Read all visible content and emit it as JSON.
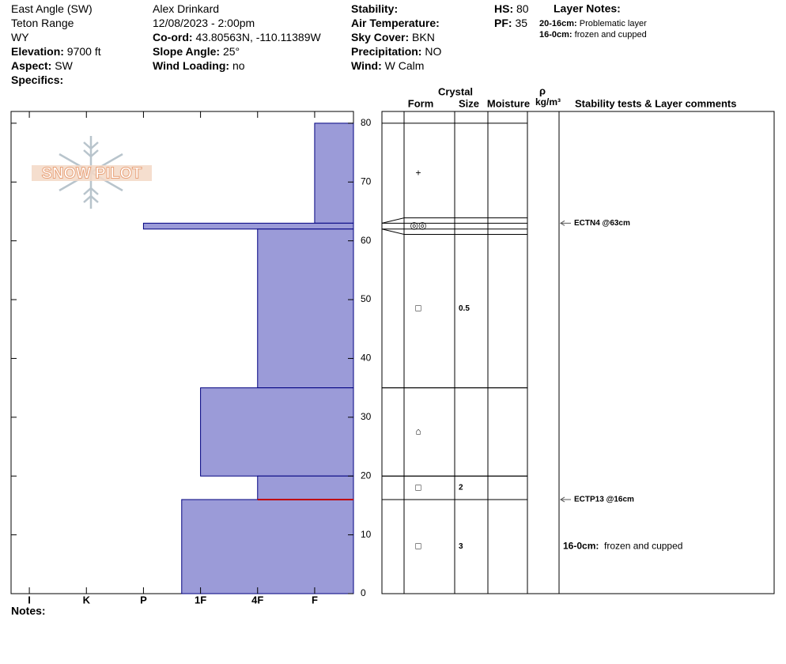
{
  "header": {
    "columns": [
      [
        {
          "text": "East Angle (SW)"
        },
        {
          "text": "Teton Range"
        },
        {
          "text": "WY"
        },
        {
          "label": "Elevation:",
          "value": "9700 ft"
        },
        {
          "label": "Aspect:",
          "value": "SW"
        },
        {
          "label": "Specifics:"
        }
      ],
      [
        {
          "text": "Alex Drinkard"
        },
        {
          "text": "12/08/2023 - 2:00pm"
        },
        {
          "label": "Co-ord:",
          "value": "43.80563N, -110.11389W"
        },
        {
          "label": "Slope Angle:",
          "value": "25°"
        },
        {
          "label": "Wind Loading:",
          "value": "no"
        }
      ],
      [
        {
          "label": "Stability:"
        },
        {
          "label": "Air Temperature:"
        },
        {
          "label": "Sky Cover:",
          "value": "BKN"
        },
        {
          "label": "Precipitation:",
          "value": "NO"
        },
        {
          "label": "Wind:",
          "value": "W Calm"
        }
      ],
      [
        {
          "label": "HS:",
          "value": 80
        },
        {
          "label": "PF:",
          "value": 35
        }
      ]
    ],
    "layer_notes": {
      "title": "Layer Notes:",
      "items": [
        {
          "range": "20-16cm:",
          "text": "Problematic layer"
        },
        {
          "range": "16-0cm:",
          "text": "frozen and cupped"
        }
      ]
    }
  },
  "logo": "SNOW PILOT",
  "notes_label": "Notes:",
  "chart_data": {
    "type": "snow-profile",
    "ylim": [
      0,
      82
    ],
    "yticks": [
      0,
      10,
      20,
      30,
      40,
      50,
      60,
      70,
      80
    ],
    "xlim": [
      0.32,
      6.32
    ],
    "xticks": [
      {
        "value": 6,
        "label": "I"
      },
      {
        "value": 5,
        "label": "K"
      },
      {
        "value": 4,
        "label": "P"
      },
      {
        "value": 3,
        "label": "1F"
      },
      {
        "value": 2,
        "label": "4F"
      },
      {
        "value": 1,
        "label": "F"
      }
    ],
    "color": "#9b9bd8",
    "columns": {
      "crystal": "Crystal",
      "form": "Form",
      "size": "Size",
      "moisture": "Moisture",
      "density": "ρ",
      "density_unit": "kg/m³",
      "comments": "Stability tests & Layer comments"
    },
    "layers": [
      {
        "top": 80,
        "bottom": 63,
        "hardness": 1,
        "form": "+"
      },
      {
        "top": 63,
        "bottom": 62,
        "hardness": 4,
        "form": "◎◎"
      },
      {
        "top": 62,
        "bottom": 35,
        "hardness": 2,
        "form": "□",
        "size": 0.5
      },
      {
        "top": 35,
        "bottom": 20,
        "hardness": 3,
        "form": "⌂"
      },
      {
        "top": 20,
        "bottom": 16,
        "hardness": 2,
        "form": "□",
        "size": 2
      },
      {
        "top": 16,
        "bottom": 0,
        "hardness": 3.33,
        "form": "□",
        "size": 3,
        "comment": {
          "range": "16-0cm:",
          "text": "frozen and cupped"
        }
      }
    ],
    "tests": [
      {
        "label": "ECTN4 @63cm",
        "depth": 63
      },
      {
        "label": "ECTP13 @16cm",
        "depth": 16
      }
    ]
  }
}
